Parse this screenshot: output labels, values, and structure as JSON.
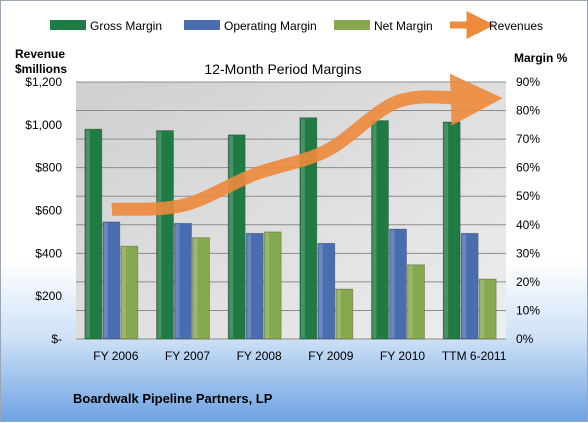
{
  "chart_data": {
    "type": "bar",
    "title": "12-Month Period Margins",
    "categories": [
      "FY 2006",
      "FY 2007",
      "FY 2008",
      "FY 2009",
      "FY 2010",
      "TTM 6-2011"
    ],
    "series": [
      {
        "name": "Gross Margin",
        "axis": "right",
        "color": "#1f7a43",
        "values": [
          73.5,
          73,
          71.5,
          77.5,
          76.5,
          76
        ]
      },
      {
        "name": "Operating Margin",
        "axis": "right",
        "color": "#4a6db0",
        "values": [
          41,
          40.5,
          37,
          33.5,
          38.5,
          37
        ]
      },
      {
        "name": "Net Margin",
        "axis": "right",
        "color": "#86a84f",
        "values": [
          32.5,
          35.5,
          37.5,
          17.5,
          26,
          21
        ]
      },
      {
        "name": "Revenues",
        "axis": "left",
        "type": "line",
        "color": "#ee8a3c",
        "values": [
          605,
          625,
          770,
          880,
          1110,
          1120
        ]
      }
    ],
    "y_left": {
      "label_line1": "Revenue",
      "label_line2": "$millions",
      "range": [
        0,
        1200
      ],
      "ticks": [
        0,
        200,
        400,
        600,
        800,
        1000,
        1200
      ],
      "tick_labels": [
        "$-",
        "$200",
        "$400",
        "$600",
        "$800",
        "$1,000",
        "$1,200"
      ]
    },
    "y_right": {
      "label": "Margin %",
      "range": [
        0,
        90
      ],
      "ticks": [
        0,
        10,
        20,
        30,
        40,
        50,
        60,
        70,
        80,
        90
      ],
      "tick_labels": [
        "0%",
        "10%",
        "20%",
        "30%",
        "40%",
        "50%",
        "60%",
        "70%",
        "80%",
        "90%"
      ]
    },
    "grid": true,
    "legend_position": "top",
    "plot_background": "#d9d9d9"
  },
  "footer": "Boardwalk Pipeline Partners, LP"
}
